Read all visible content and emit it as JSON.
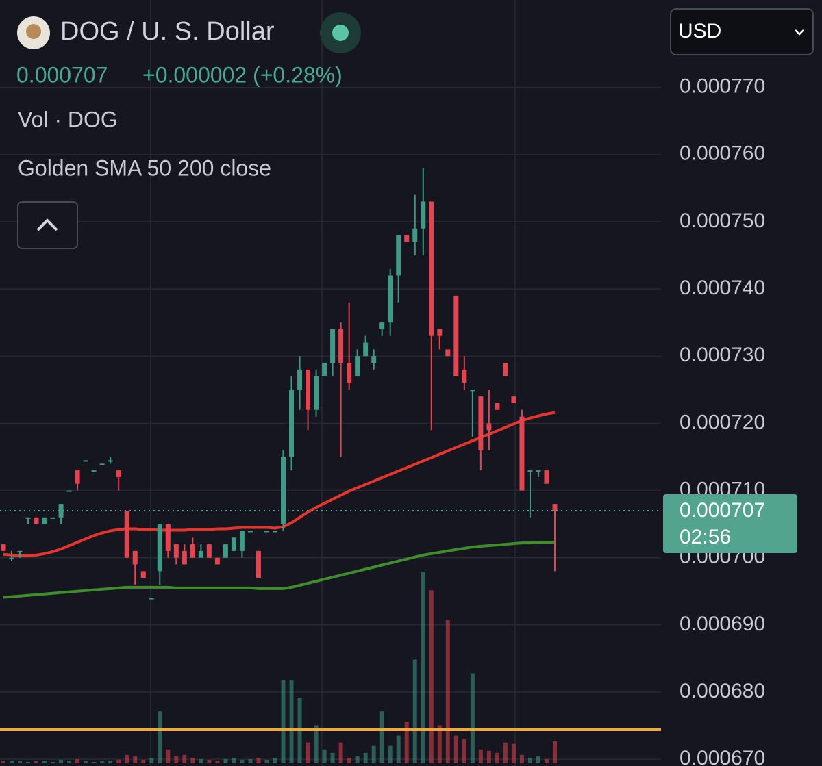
{
  "chart_data": {
    "type": "candlestick",
    "title": "DOG / U. S. Dollar",
    "last_price": 0.000707,
    "change": "+0.000002 (+0.28%)",
    "volume_label": "Vol · DOG",
    "indicator_label": "Golden SMA 50 200 close",
    "currency": "USD",
    "countdown": "02:56",
    "up_color": "#3f9b87",
    "down_color": "#e5434f",
    "ylim": [
      0.000669,
      0.000783
    ],
    "yticks": [
      {
        "value": 0.00067,
        "label": "0.000670"
      },
      {
        "value": 0.00068,
        "label": "0.000680"
      },
      {
        "value": 0.00069,
        "label": "0.000690"
      },
      {
        "value": 0.0007,
        "label": "0.000700"
      },
      {
        "value": 0.00071,
        "label": "0.000710"
      },
      {
        "value": 0.00072,
        "label": "0.000720"
      },
      {
        "value": 0.00073,
        "label": "0.000730"
      },
      {
        "value": 0.00074,
        "label": "0.000740"
      },
      {
        "value": 0.00075,
        "label": "0.000750"
      },
      {
        "value": 0.00076,
        "label": "0.000760"
      },
      {
        "value": 0.00077,
        "label": "0.000770"
      }
    ],
    "grid": true,
    "ohlc": [
      [
        0.000702,
        0.000702,
        0.000701,
        0.000701
      ],
      [
        0.0007,
        0.000701,
        0.0006995,
        0.0007
      ],
      [
        0.000701,
        0.000701,
        0.0007,
        0.000701
      ],
      [
        0.000706,
        0.000706,
        0.000705,
        0.000706
      ],
      [
        0.000706,
        0.000706,
        0.000705,
        0.000705
      ],
      [
        0.000705,
        0.000706,
        0.000705,
        0.000706
      ],
      [
        0.000706,
        0.000706,
        0.000706,
        0.000706
      ],
      [
        0.000706,
        0.000708,
        0.000705,
        0.000708
      ],
      [
        0.00071,
        0.00071,
        0.00071,
        0.00071
      ],
      [
        0.000713,
        0.000713,
        0.00071,
        0.000711
      ],
      [
        0.0007145,
        0.0007145,
        0.0007145,
        0.0007145
      ],
      [
        0.000713,
        0.000713,
        0.000713,
        0.000713
      ],
      [
        0.000714,
        0.000714,
        0.000714,
        0.000714
      ],
      [
        0.0007145,
        0.000715,
        0.000714,
        0.0007145
      ],
      [
        0.000713,
        0.000713,
        0.00071,
        0.000712
      ],
      [
        0.000707,
        0.000707,
        0.0007,
        0.0007
      ],
      [
        0.000701,
        0.000701,
        0.000696,
        0.000699
      ],
      [
        0.000698,
        0.000698,
        0.000697,
        0.000697
      ],
      [
        0.000694,
        0.000694,
        0.000694,
        0.000694
      ],
      [
        0.000698,
        0.000705,
        0.000696,
        0.000705
      ],
      [
        0.000705,
        0.000705,
        0.0007,
        0.000701
      ],
      [
        0.000702,
        0.000702,
        0.000699,
        0.0007
      ],
      [
        0.000701,
        0.000702,
        0.000699,
        0.000699
      ],
      [
        0.000702,
        0.000703,
        0.0007,
        0.0007
      ],
      [
        0.0007,
        0.000702,
        0.0007,
        0.000701
      ],
      [
        0.000702,
        0.000702,
        0.0007,
        0.0007
      ],
      [
        0.0007,
        0.0007,
        0.000699,
        0.000699
      ],
      [
        0.0007,
        0.000702,
        0.0007,
        0.000702
      ],
      [
        0.000701,
        0.000703,
        0.000701,
        0.000703
      ],
      [
        0.000701,
        0.000704,
        0.0007,
        0.000704
      ],
      [
        0.000704,
        0.000704,
        0.000704,
        0.000704
      ],
      [
        0.000701,
        0.000701,
        0.000697,
        0.000697
      ],
      [
        0.000704,
        0.000704,
        0.000704,
        0.000704
      ],
      [
        0.000704,
        0.000704,
        0.000704,
        0.000704
      ],
      [
        0.000705,
        0.000716,
        0.000704,
        0.000715
      ],
      [
        0.000715,
        0.000727,
        0.000713,
        0.000725
      ],
      [
        0.000725,
        0.00073,
        0.000722,
        0.000728
      ],
      [
        0.000728,
        0.000728,
        0.000719,
        0.000722
      ],
      [
        0.000722,
        0.000728,
        0.000721,
        0.000727
      ],
      [
        0.000727,
        0.000729,
        0.000727,
        0.000729
      ],
      [
        0.000729,
        0.000734,
        0.000727,
        0.000734
      ],
      [
        0.000734,
        0.000735,
        0.000715,
        0.000729
      ],
      [
        0.000729,
        0.000738,
        0.000725,
        0.000726
      ],
      [
        0.000727,
        0.000731,
        0.000727,
        0.00073
      ],
      [
        0.00073,
        0.000733,
        0.00073,
        0.000732
      ],
      [
        0.000729,
        0.000731,
        0.000728,
        0.00073
      ],
      [
        0.000734,
        0.000735,
        0.000733,
        0.000735
      ],
      [
        0.000735,
        0.000743,
        0.000733,
        0.000742
      ],
      [
        0.000742,
        0.000748,
        0.000738,
        0.000748
      ],
      [
        0.000748,
        0.000748,
        0.000747,
        0.000747
      ],
      [
        0.000747,
        0.000754,
        0.000745,
        0.000749
      ],
      [
        0.000749,
        0.000758,
        0.000745,
        0.000753
      ],
      [
        0.000753,
        0.000753,
        0.000719,
        0.000733
      ],
      [
        0.000734,
        0.000734,
        0.000731,
        0.000733
      ],
      [
        0.000731,
        0.000731,
        0.00073,
        0.00073
      ],
      [
        0.000739,
        0.000739,
        0.000727,
        0.000727
      ],
      [
        0.000728,
        0.00073,
        0.000725,
        0.000726
      ],
      [
        0.000725,
        0.000725,
        0.000718,
        0.000725
      ],
      [
        0.000724,
        0.000724,
        0.000713,
        0.000716
      ],
      [
        0.00072,
        0.000725,
        0.000716,
        0.000719
      ],
      [
        0.000723,
        0.000723,
        0.000722,
        0.000722
      ],
      [
        0.000729,
        0.000729,
        0.000727,
        0.000727
      ],
      [
        0.000724,
        0.000724,
        0.000723,
        0.000723
      ],
      [
        0.000721,
        0.000722,
        0.00071,
        0.00071
      ],
      [
        0.000713,
        0.000713,
        0.000706,
        0.000713
      ],
      [
        0.000713,
        0.000713,
        0.000712,
        0.000713
      ],
      [
        0.000713,
        0.000713,
        0.000711,
        0.000711
      ],
      [
        0.000708,
        0.000708,
        0.000698,
        0.000707
      ]
    ],
    "volume": [
      3,
      4,
      3,
      2,
      3,
      3,
      2,
      5,
      3,
      6,
      3,
      2,
      3,
      4,
      5,
      12,
      10,
      5,
      8,
      75,
      20,
      10,
      12,
      8,
      6,
      5,
      4,
      6,
      8,
      5,
      6,
      8,
      5,
      8,
      120,
      120,
      95,
      30,
      55,
      20,
      15,
      30,
      8,
      10,
      15,
      25,
      75,
      25,
      40,
      60,
      150,
      277,
      250,
      55,
      207,
      40,
      35,
      130,
      20,
      18,
      15,
      30,
      28,
      12,
      8,
      10,
      6,
      32
    ],
    "sma": [
      {
        "color": "#e8352c",
        "values": [
          0.0007005,
          0.0007004,
          0.0007003,
          0.0007003,
          0.0007004,
          0.0007006,
          0.0007009,
          0.0007013,
          0.0007018,
          0.0007023,
          0.0007028,
          0.0007033,
          0.0007037,
          0.000704,
          0.0007042,
          0.0007043,
          0.0007043,
          0.0007042,
          0.0007042,
          0.0007041,
          0.0007041,
          0.0007041,
          0.0007041,
          0.0007042,
          0.0007042,
          0.0007042,
          0.0007043,
          0.0007043,
          0.0007044,
          0.0007045,
          0.0007045,
          0.0007045,
          0.0007045,
          0.0007044,
          0.0007046,
          0.0007052,
          0.000706,
          0.0007068,
          0.0007075,
          0.0007081,
          0.0007087,
          0.0007093,
          0.0007099,
          0.0007104,
          0.0007109,
          0.0007114,
          0.0007119,
          0.0007124,
          0.0007129,
          0.0007134,
          0.0007139,
          0.0007144,
          0.0007149,
          0.0007154,
          0.0007159,
          0.0007164,
          0.0007169,
          0.0007174,
          0.0007179,
          0.0007184,
          0.0007189,
          0.0007194,
          0.0007199,
          0.0007204,
          0.0007208,
          0.0007211,
          0.0007214,
          0.0007216
        ]
      },
      {
        "color": "#3f8e2b",
        "values": [
          0.0006941,
          0.0006942,
          0.0006943,
          0.0006944,
          0.0006945,
          0.0006946,
          0.0006947,
          0.0006948,
          0.0006949,
          0.000695,
          0.0006951,
          0.0006952,
          0.0006953,
          0.0006954,
          0.0006955,
          0.0006956,
          0.0006956,
          0.0006956,
          0.0006956,
          0.0006956,
          0.0006956,
          0.0006955,
          0.0006955,
          0.0006955,
          0.0006955,
          0.0006955,
          0.0006955,
          0.0006955,
          0.0006955,
          0.0006955,
          0.0006955,
          0.0006954,
          0.0006954,
          0.0006954,
          0.0006954,
          0.0006956,
          0.0006959,
          0.0006962,
          0.0006965,
          0.0006968,
          0.0006971,
          0.0006974,
          0.0006977,
          0.000698,
          0.0006983,
          0.0006986,
          0.0006989,
          0.0006992,
          0.0006995,
          0.0006998,
          0.0007001,
          0.0007004,
          0.0007006,
          0.0007008,
          0.000701,
          0.0007012,
          0.0007014,
          0.0007016,
          0.0007017,
          0.0007018,
          0.0007019,
          0.000702,
          0.0007021,
          0.0007022,
          0.0007022,
          0.0007023,
          0.0007023,
          0.0007023
        ]
      }
    ],
    "hline": {
      "value": 0.0006744,
      "color": "#f0a83c"
    }
  }
}
